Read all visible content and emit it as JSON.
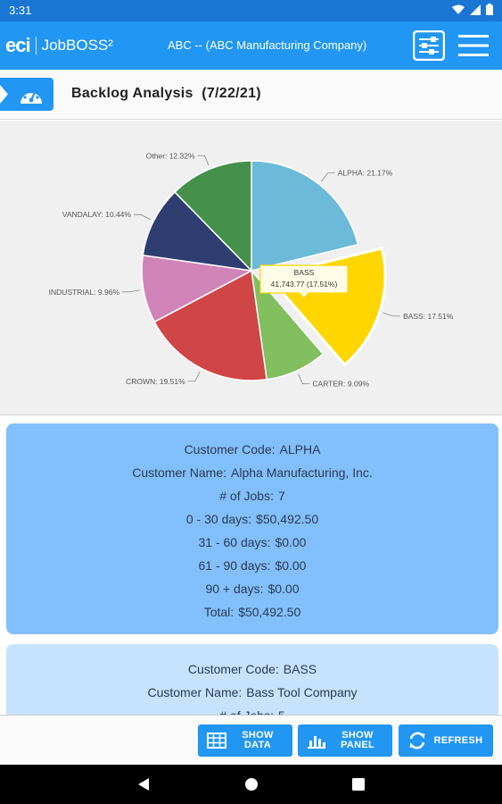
{
  "status_bar": {
    "time": "3:31"
  },
  "app_bar": {
    "logo_eci": "eci",
    "logo_product": "JobBOSS²",
    "company": "ABC -- (ABC Manufacturing Company)"
  },
  "header": {
    "title": "Backlog Analysis  (7/22/21)"
  },
  "chart_data": {
    "type": "pie",
    "title": "",
    "slices": [
      {
        "name": "ALPHA",
        "label": "ALPHA: 21.17%",
        "value": 21.17,
        "color": "#6bbad9"
      },
      {
        "name": "BASS",
        "label": "BASS: 17.51%",
        "value": 17.51,
        "color": "#ffd600",
        "exploded": true
      },
      {
        "name": "CARTER",
        "label": "CARTER: 9.09%",
        "value": 9.09,
        "color": "#82bf5f"
      },
      {
        "name": "CROWN",
        "label": "CROWN: 19.51%",
        "value": 19.51,
        "color": "#d04646"
      },
      {
        "name": "INDUSTRIAL",
        "label": "INDUSTRIAL: 9.96%",
        "value": 9.96,
        "color": "#d184b8"
      },
      {
        "name": "VANDALAY",
        "label": "VANDALAY: 10.44%",
        "value": 10.44,
        "color": "#2f3e70"
      },
      {
        "name": "Other",
        "label": "Other: 12.32%",
        "value": 12.32,
        "color": "#45914c"
      }
    ],
    "tooltip": {
      "name": "BASS",
      "value_text": "41,743.77 (17.51%)"
    }
  },
  "cards": [
    {
      "lines": [
        {
          "label": "Customer Code:",
          "value": "ALPHA"
        },
        {
          "label": "Customer Name:",
          "value": "Alpha Manufacturing, Inc."
        },
        {
          "label": "# of Jobs:",
          "value": "7"
        },
        {
          "label": "0 - 30 days:",
          "value": "$50,492.50"
        },
        {
          "label": "31 - 60 days:",
          "value": "$0.00"
        },
        {
          "label": "61 - 90 days:",
          "value": "$0.00"
        },
        {
          "label": "90 + days:",
          "value": "$0.00"
        },
        {
          "label": "Total:",
          "value": "$50,492.50"
        }
      ]
    },
    {
      "lines": [
        {
          "label": "Customer Code:",
          "value": "BASS"
        },
        {
          "label": "Customer Name:",
          "value": "Bass Tool Company"
        },
        {
          "label": "# of Jobs:",
          "value": "5"
        }
      ]
    }
  ],
  "bottom_bar": {
    "show_data_l1": "SHOW",
    "show_data_l2": "DATA",
    "show_panel_l1": "SHOW",
    "show_panel_l2": "PANEL",
    "refresh": "REFRESH"
  },
  "colors": {
    "primary": "#2196f3",
    "status_bar": "#1976d2",
    "card_selected": "#82bffc",
    "card": "#c6e2fd"
  }
}
